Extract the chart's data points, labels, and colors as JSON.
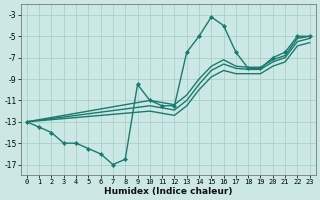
{
  "title": "",
  "xlabel": "Humidex (Indice chaleur)",
  "bg_color": "#cce8e4",
  "grid_color": "#aad0cc",
  "line_color": "#1a7a6e",
  "xlim": [
    -0.5,
    23.5
  ],
  "ylim": [
    -18,
    -2
  ],
  "xticks": [
    0,
    1,
    2,
    3,
    4,
    5,
    6,
    7,
    8,
    9,
    10,
    11,
    12,
    13,
    14,
    15,
    16,
    17,
    18,
    19,
    20,
    21,
    22,
    23
  ],
  "yticks": [
    -17,
    -15,
    -13,
    -11,
    -9,
    -7,
    -5,
    -3
  ],
  "series": [
    {
      "x": [
        0,
        1,
        2,
        3,
        4,
        5,
        6,
        7,
        8,
        9,
        10,
        11,
        12,
        13,
        14,
        15,
        16,
        17,
        18,
        19,
        20,
        21,
        22,
        23
      ],
      "y": [
        -13,
        -13.5,
        -14,
        -15,
        -15,
        -15.5,
        -16,
        -17,
        -16.5,
        -9.5,
        -11,
        -11.5,
        -11.5,
        -6.5,
        -5,
        -3.2,
        -4,
        -6.5,
        -8,
        -8,
        -7,
        -6.5,
        -5,
        -5
      ],
      "marker": "D",
      "markersize": 2.0,
      "linewidth": 1.0
    },
    {
      "x": [
        0,
        10,
        11,
        12,
        13,
        14,
        15,
        16,
        17,
        18,
        19,
        20,
        21,
        22,
        23
      ],
      "y": [
        -13,
        -11,
        -11.2,
        -11.4,
        -10.5,
        -9.0,
        -7.8,
        -7.2,
        -7.8,
        -7.9,
        -7.9,
        -7.2,
        -6.8,
        -5.2,
        -5.0
      ],
      "marker": null,
      "linewidth": 1.0
    },
    {
      "x": [
        0,
        10,
        11,
        12,
        13,
        14,
        15,
        16,
        17,
        18,
        19,
        20,
        21,
        22,
        23
      ],
      "y": [
        -13,
        -11.5,
        -11.7,
        -11.9,
        -11.0,
        -9.5,
        -8.2,
        -7.6,
        -8.0,
        -8.1,
        -8.1,
        -7.4,
        -7.0,
        -5.5,
        -5.2
      ],
      "marker": null,
      "linewidth": 1.0
    },
    {
      "x": [
        0,
        10,
        11,
        12,
        13,
        14,
        15,
        16,
        17,
        18,
        19,
        20,
        21,
        22,
        23
      ],
      "y": [
        -13,
        -12.0,
        -12.2,
        -12.4,
        -11.5,
        -10.0,
        -8.8,
        -8.2,
        -8.5,
        -8.5,
        -8.5,
        -7.8,
        -7.4,
        -5.9,
        -5.6
      ],
      "marker": null,
      "linewidth": 1.0
    }
  ]
}
